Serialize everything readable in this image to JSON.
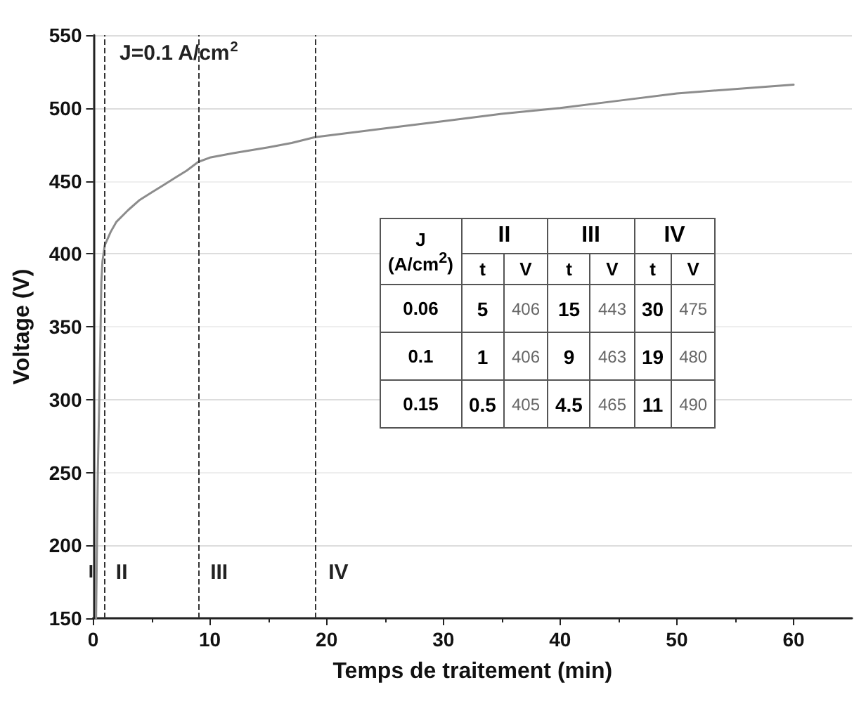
{
  "chart_data": [
    {
      "type": "line",
      "xlabel": "Temps de traitement (min)",
      "ylabel": "Voltage (V)",
      "annotations": [
        "J=0.1 A/cm$^{2}$",
        "I",
        "II",
        "III",
        "IV"
      ],
      "series": [
        {
          "color": "#8c8c8c",
          "x": [
            0.25,
            0.4,
            0.6,
            0.7,
            0.8,
            1,
            1.5,
            2,
            3,
            4,
            5,
            6,
            7,
            8,
            9,
            10,
            12,
            15,
            17,
            19,
            22,
            25,
            30,
            35,
            40,
            45,
            50,
            55,
            60
          ],
          "values": [
            150,
            250,
            330,
            380,
            395,
            406,
            415,
            422,
            430,
            437,
            442,
            447,
            452,
            457,
            463,
            466,
            469,
            473,
            476,
            480,
            483,
            486,
            491,
            496,
            500,
            505,
            510,
            513,
            516
          ]
        }
      ],
      "xlim": [
        0,
        65
      ],
      "xticks": [
        0,
        10,
        20,
        30,
        40,
        50,
        60
      ],
      "ylim": [
        150,
        550
      ],
      "yticks": [
        150,
        200,
        250,
        300,
        350,
        400,
        450,
        500,
        550
      ],
      "ref_lines": [
        {
          "axis": "x",
          "value": 1,
          "color": "#333333",
          "line_style": "dashed"
        },
        {
          "axis": "x",
          "value": 9,
          "color": "#333333",
          "line_style": "dashed"
        },
        {
          "axis": "x",
          "value": 19,
          "color": "#333333",
          "line_style": "dashed"
        }
      ],
      "grid": "y",
      "marker": "none",
      "line_style": "solid"
    },
    {
      "type": "other",
      "title": "J (A/cm$^{2}$)",
      "categories": [
        "II",
        "III",
        "IV"
      ],
      "annotations": [
        "t",
        "V",
        "t",
        "V",
        "t",
        "V"
      ],
      "y_categories": [
        "0.06",
        "0.1",
        "0.15"
      ],
      "cell_labels": [
        [
          "5",
          "406",
          "15",
          "443",
          "30",
          "475"
        ],
        [
          "1",
          "406",
          "9",
          "463",
          "19",
          "480"
        ],
        [
          "0.5",
          "405",
          "4.5",
          "465",
          "11",
          "490"
        ]
      ]
    }
  ]
}
